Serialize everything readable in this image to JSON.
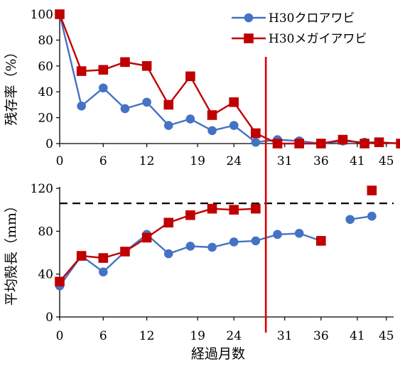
{
  "chart_data": [
    {
      "type": "line",
      "ylabel": "残存率（%）",
      "ylim": [
        0,
        100
      ],
      "yticks": [
        0,
        20,
        40,
        60,
        80,
        100
      ],
      "xlim": [
        0,
        46
      ],
      "xticks": [
        0,
        6,
        12,
        19,
        24,
        31,
        36,
        41,
        45
      ],
      "grid": false,
      "legend_position": "top-right",
      "series": [
        {
          "name": "H30クロアワビ",
          "marker": "circle",
          "color": "#4472C4",
          "points": [
            [
              0,
              100
            ],
            [
              3,
              29
            ],
            [
              6,
              43
            ],
            [
              9,
              27
            ],
            [
              12,
              32
            ],
            [
              15,
              14
            ],
            [
              18,
              19
            ],
            [
              21,
              10
            ],
            [
              24,
              14
            ],
            [
              27,
              1
            ],
            [
              30,
              3
            ],
            [
              33,
              2
            ],
            [
              36,
              0
            ],
            [
              39,
              2
            ],
            [
              42,
              1
            ],
            [
              44,
              1
            ],
            [
              47,
              0
            ]
          ]
        },
        {
          "name": "H30メガイアワビ",
          "marker": "square",
          "color": "#C00000",
          "points": [
            [
              0,
              100
            ],
            [
              3,
              56
            ],
            [
              6,
              57
            ],
            [
              9,
              63
            ],
            [
              12,
              60
            ],
            [
              15,
              30
            ],
            [
              18,
              52
            ],
            [
              21,
              22
            ],
            [
              24,
              32
            ],
            [
              27,
              8
            ],
            [
              30,
              0
            ],
            [
              33,
              0
            ],
            [
              36,
              0
            ],
            [
              39,
              3
            ],
            [
              42,
              0
            ],
            [
              44,
              1
            ],
            [
              47,
              0
            ]
          ]
        }
      ]
    },
    {
      "type": "line",
      "xlabel": "経過月数",
      "ylabel": "平均殻長（mm）",
      "ylim": [
        0,
        120
      ],
      "yticks": [
        0,
        40,
        80,
        120
      ],
      "xlim": [
        0,
        46
      ],
      "xticks": [
        0,
        6,
        12,
        19,
        24,
        31,
        36,
        41,
        45
      ],
      "grid": false,
      "reference_line_y": 106,
      "series": [
        {
          "name": "H30クロアワビ",
          "marker": "circle",
          "color": "#4472C4",
          "segments": [
            [
              [
                0,
                29
              ],
              [
                3,
                57
              ],
              [
                6,
                42
              ],
              [
                9,
                61
              ],
              [
                12,
                77
              ],
              [
                15,
                59
              ],
              [
                18,
                66
              ],
              [
                21,
                65
              ],
              [
                24,
                70
              ],
              [
                27,
                71
              ],
              [
                30,
                77
              ],
              [
                33,
                78
              ],
              [
                36,
                71
              ]
            ],
            [
              [
                40,
                91
              ],
              [
                43,
                94
              ]
            ]
          ]
        },
        {
          "name": "H30メガイアワビ",
          "marker": "square",
          "color": "#C00000",
          "segments": [
            [
              [
                0,
                33
              ],
              [
                3,
                57
              ],
              [
                6,
                55
              ],
              [
                9,
                61
              ],
              [
                12,
                74
              ],
              [
                15,
                88
              ],
              [
                18,
                95
              ],
              [
                21,
                101
              ],
              [
                24,
                100
              ],
              [
                27,
                101
              ]
            ],
            [
              [
                36,
                71
              ]
            ],
            [
              [
                43,
                118
              ]
            ]
          ]
        }
      ]
    }
  ],
  "divider": {
    "x": 28.4,
    "color": "#E00000"
  }
}
